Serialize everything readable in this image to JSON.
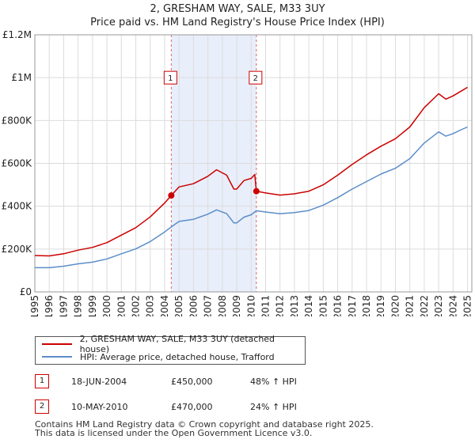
{
  "header": {
    "title": "2, GRESHAM WAY, SALE, M33 3UY",
    "subtitle": "Price paid vs. HM Land Registry's House Price Index (HPI)"
  },
  "colors": {
    "property": "#cc0000",
    "hpi": "#5b8ec9",
    "shade": "#e8eefa",
    "marker": "#cc0000"
  },
  "chart_data": {
    "type": "line",
    "title": "2, GRESHAM WAY, SALE, M33 3UY",
    "subtitle": "Price paid vs. HM Land Registry's House Price Index (HPI)",
    "xlabel": "",
    "ylabel": "",
    "xlim": [
      1995.0,
      2025.3
    ],
    "ylim": [
      0,
      1200000
    ],
    "grid": true,
    "x_ticks": [
      "1995",
      "1996",
      "1997",
      "1998",
      "1999",
      "2000",
      "2001",
      "2002",
      "2003",
      "2004",
      "2005",
      "2006",
      "2007",
      "2008",
      "2009",
      "2010",
      "2011",
      "2012",
      "2013",
      "2014",
      "2015",
      "2016",
      "2017",
      "2018",
      "2019",
      "2020",
      "2021",
      "2022",
      "2023",
      "2024",
      "2025"
    ],
    "y_ticks": [
      {
        "value": 0,
        "label": "£0"
      },
      {
        "value": 200000,
        "label": "£200K"
      },
      {
        "value": 400000,
        "label": "£400K"
      },
      {
        "value": 600000,
        "label": "£600K"
      },
      {
        "value": 800000,
        "label": "£800K"
      },
      {
        "value": 1000000,
        "label": "£1M"
      },
      {
        "value": 1200000,
        "label": "£1.2M"
      }
    ],
    "shaded_region": [
      2004.46,
      2010.36
    ],
    "series": [
      {
        "name": "2, GRESHAM WAY, SALE, M33 3UY (detached house)",
        "color": "#cc0000",
        "points": [
          [
            1995.0,
            170000
          ],
          [
            1996.0,
            168000
          ],
          [
            1997.0,
            178000
          ],
          [
            1998.0,
            195000
          ],
          [
            1999.0,
            208000
          ],
          [
            2000.0,
            230000
          ],
          [
            2001.0,
            265000
          ],
          [
            2002.0,
            300000
          ],
          [
            2003.0,
            350000
          ],
          [
            2004.0,
            415000
          ],
          [
            2004.46,
            450000
          ],
          [
            2005.0,
            490000
          ],
          [
            2006.0,
            505000
          ],
          [
            2007.0,
            540000
          ],
          [
            2007.6,
            570000
          ],
          [
            2008.3,
            545000
          ],
          [
            2008.8,
            480000
          ],
          [
            2009.0,
            480000
          ],
          [
            2009.5,
            520000
          ],
          [
            2010.0,
            530000
          ],
          [
            2010.25,
            548000
          ],
          [
            2010.36,
            470000
          ],
          [
            2011.0,
            462000
          ],
          [
            2012.0,
            452000
          ],
          [
            2013.0,
            458000
          ],
          [
            2014.0,
            470000
          ],
          [
            2015.0,
            500000
          ],
          [
            2016.0,
            545000
          ],
          [
            2017.0,
            595000
          ],
          [
            2018.0,
            640000
          ],
          [
            2019.0,
            680000
          ],
          [
            2020.0,
            715000
          ],
          [
            2021.0,
            770000
          ],
          [
            2022.0,
            860000
          ],
          [
            2023.0,
            925000
          ],
          [
            2023.5,
            900000
          ],
          [
            2024.0,
            915000
          ],
          [
            2024.5,
            935000
          ],
          [
            2025.0,
            955000
          ]
        ]
      },
      {
        "name": "HPI: Average price, detached house, Trafford",
        "color": "#5b8ec9",
        "points": [
          [
            1995.0,
            113000
          ],
          [
            1996.0,
            113000
          ],
          [
            1997.0,
            120000
          ],
          [
            1998.0,
            131000
          ],
          [
            1999.0,
            139000
          ],
          [
            2000.0,
            154000
          ],
          [
            2001.0,
            178000
          ],
          [
            2002.0,
            201000
          ],
          [
            2003.0,
            235000
          ],
          [
            2004.0,
            280000
          ],
          [
            2004.46,
            303000
          ],
          [
            2005.0,
            329000
          ],
          [
            2006.0,
            339000
          ],
          [
            2007.0,
            363000
          ],
          [
            2007.6,
            383000
          ],
          [
            2008.3,
            365000
          ],
          [
            2008.8,
            322000
          ],
          [
            2009.0,
            322000
          ],
          [
            2009.5,
            349000
          ],
          [
            2010.0,
            360000
          ],
          [
            2010.36,
            379000
          ],
          [
            2011.0,
            373000
          ],
          [
            2012.0,
            365000
          ],
          [
            2013.0,
            370000
          ],
          [
            2014.0,
            380000
          ],
          [
            2015.0,
            405000
          ],
          [
            2016.0,
            440000
          ],
          [
            2017.0,
            480000
          ],
          [
            2018.0,
            515000
          ],
          [
            2019.0,
            550000
          ],
          [
            2020.0,
            577000
          ],
          [
            2021.0,
            622000
          ],
          [
            2022.0,
            695000
          ],
          [
            2023.0,
            747000
          ],
          [
            2023.5,
            727000
          ],
          [
            2024.0,
            739000
          ],
          [
            2024.5,
            755000
          ],
          [
            2025.0,
            770000
          ]
        ]
      }
    ],
    "sales": [
      {
        "id": "1",
        "x": 2004.46,
        "y": 450000
      },
      {
        "id": "2",
        "x": 2010.36,
        "y": 470000
      }
    ]
  },
  "legend": {
    "property_label": "2, GRESHAM WAY, SALE, M33 3UY (detached house)",
    "hpi_label": "HPI: Average price, detached house, Trafford"
  },
  "transactions": [
    {
      "num": "1",
      "date": "18-JUN-2004",
      "price": "£450,000",
      "hpi": "48% ↑ HPI"
    },
    {
      "num": "2",
      "date": "10-MAY-2010",
      "price": "£470,000",
      "hpi": "24% ↑ HPI"
    }
  ],
  "footer": {
    "line1": "Contains HM Land Registry data © Crown copyright and database right 2025.",
    "line2": "This data is licensed under the Open Government Licence v3.0."
  }
}
